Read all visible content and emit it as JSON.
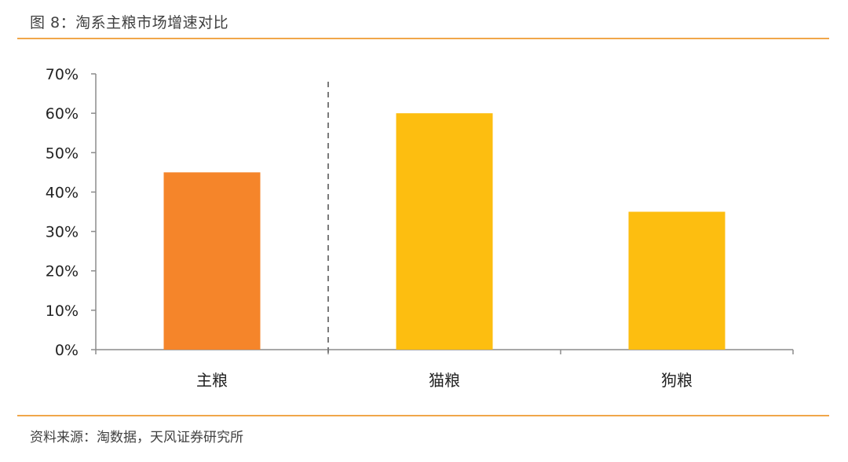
{
  "figure": {
    "title": "图 8：淘系主粮市场增速对比",
    "source": "资料来源：淘数据，天风证券研究所",
    "rule_color": "#F0A64A"
  },
  "chart_data": {
    "type": "bar",
    "categories": [
      "主粮",
      "猫粮",
      "狗粮"
    ],
    "values": [
      0.45,
      0.6,
      0.35
    ],
    "colors": [
      "#F5852A",
      "#FDBE10",
      "#FDBE10"
    ],
    "yticks": [
      "0%",
      "10%",
      "20%",
      "30%",
      "40%",
      "50%",
      "60%",
      "70%"
    ],
    "ylim": [
      0,
      0.7
    ],
    "grid": false,
    "separator": "dashed line between 主粮 and 猫粮",
    "legend": "none"
  }
}
